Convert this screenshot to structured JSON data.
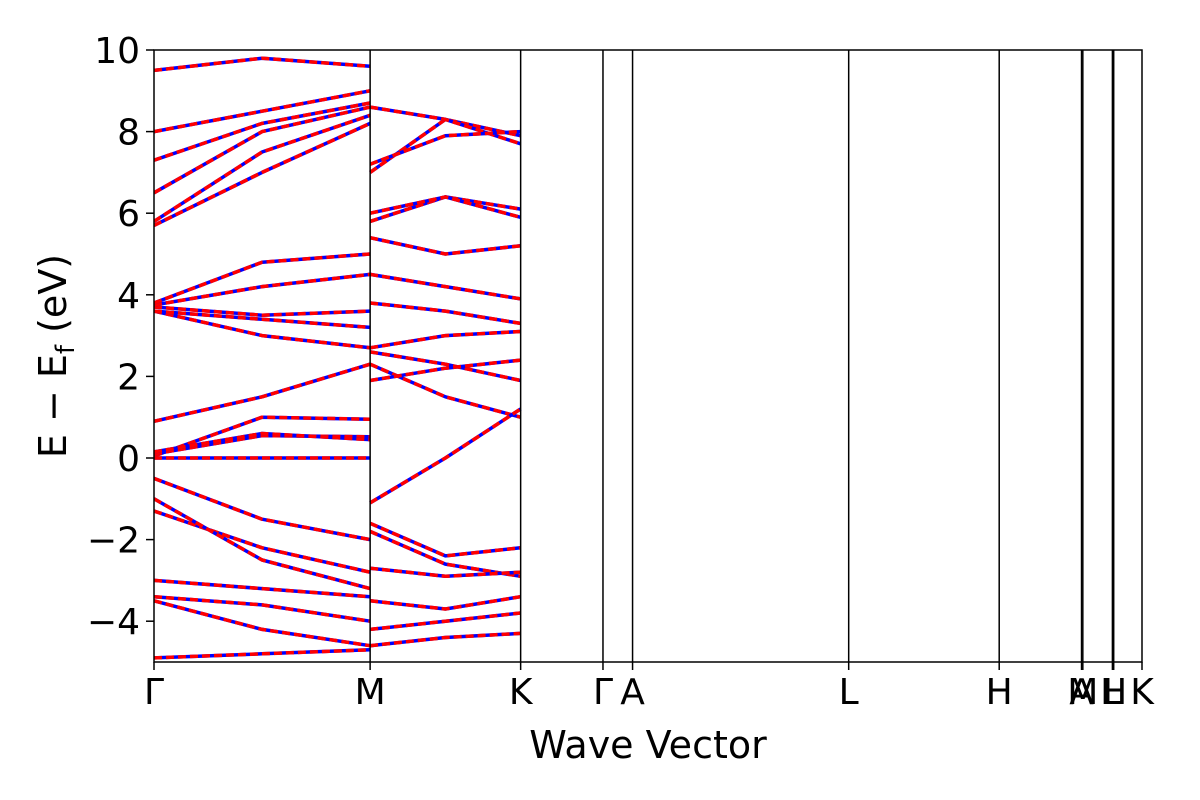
{
  "chart_data": {
    "type": "line",
    "title": "",
    "xlabel": "Wave Vector",
    "ylabel": "E − E_f (eV)",
    "ylabel_main": "E − E",
    "ylabel_sub": "f",
    "ylabel_unit": " (eV)",
    "ylim": [
      -5,
      10
    ],
    "yticks": [
      -4,
      -2,
      0,
      2,
      4,
      6,
      8,
      10
    ],
    "ytick_labels": [
      "−4",
      "−2",
      "0",
      "2",
      "4",
      "6",
      "8",
      "10"
    ],
    "xlim": [
      0,
      7.68
    ],
    "kpoints": [
      {
        "label": "Γ",
        "x": 0.0
      },
      {
        "label": "M",
        "x": 1.68
      },
      {
        "label": "K",
        "x": 2.85
      },
      {
        "label": "Γ",
        "x": 3.49
      },
      {
        "label": "A",
        "x": 3.72
      },
      {
        "label": "L",
        "x": 5.4
      },
      {
        "label": "H",
        "x": 6.57
      },
      {
        "label": "A",
        "x": 7.21
      },
      {
        "label": "M",
        "x": 7.22
      },
      {
        "label": "L",
        "x": 7.45
      },
      {
        "label": "H",
        "x": 7.46
      },
      {
        "label": "K",
        "x": 7.68
      }
    ],
    "series_style": {
      "under": "#0000ff",
      "over": "#ff0000",
      "over_dash": "dashed"
    },
    "segments": [
      [
        [
          0.0,
          0.0,
          0.0,
          0.0
        ],
        [
          0.0,
          0.05,
          1.0,
          0.95
        ],
        [
          0.0,
          0.1,
          0.55,
          0.52
        ],
        [
          0.0,
          0.15,
          0.6,
          0.45
        ],
        [
          0.0,
          0.9,
          1.5,
          2.3
        ],
        [
          0.0,
          3.6,
          3.0,
          2.7
        ],
        [
          0.0,
          3.6,
          3.4,
          3.2
        ],
        [
          0.0,
          3.7,
          3.5,
          3.6
        ],
        [
          0.0,
          3.75,
          4.2,
          4.5
        ],
        [
          0.0,
          3.8,
          4.8,
          5.0
        ],
        [
          0.0,
          5.7,
          7.0,
          8.2
        ],
        [
          0.0,
          5.8,
          7.5,
          8.4
        ],
        [
          0.0,
          6.5,
          8.0,
          8.6
        ],
        [
          0.0,
          7.3,
          8.2,
          8.7
        ],
        [
          0.0,
          8.0,
          8.5,
          9.0
        ],
        [
          0.0,
          9.5,
          9.8,
          9.6
        ],
        [
          0.0,
          -0.5,
          -1.5,
          -2.0
        ],
        [
          0.0,
          -1.3,
          -2.2,
          -2.8
        ],
        [
          0.0,
          -1.0,
          -2.5,
          -3.2
        ],
        [
          0.0,
          -3.0,
          -3.2,
          -3.4
        ],
        [
          0.0,
          -3.4,
          -3.6,
          -4.0
        ],
        [
          0.0,
          -3.5,
          -4.2,
          -4.6
        ],
        [
          0.0,
          -4.9,
          -4.8,
          -4.7
        ]
      ],
      [
        [
          0.0,
          2.3,
          1.5,
          1.0
        ],
        [
          0.0,
          2.6,
          2.3,
          1.9
        ],
        [
          0.0,
          1.9,
          2.2,
          2.4
        ],
        [
          0.0,
          -1.1,
          0.0,
          1.2
        ],
        [
          0.0,
          2.7,
          3.0,
          3.1
        ],
        [
          0.0,
          3.8,
          3.6,
          3.3
        ],
        [
          0.0,
          4.5,
          4.2,
          3.9
        ],
        [
          0.0,
          5.4,
          5.0,
          5.2
        ],
        [
          0.0,
          5.8,
          6.4,
          6.1
        ],
        [
          0.0,
          7.0,
          8.3,
          7.9
        ],
        [
          0.0,
          8.6,
          8.3,
          7.7
        ],
        [
          0.0,
          7.2,
          7.9,
          8.0
        ],
        [
          0.0,
          6.0,
          6.4,
          5.9
        ],
        [
          0.0,
          -1.6,
          -2.4,
          -2.2
        ],
        [
          0.0,
          -1.8,
          -2.6,
          -2.9
        ],
        [
          0.0,
          -2.7,
          -2.9,
          -2.8
        ],
        [
          0.0,
          -3.5,
          -3.7,
          -3.4
        ],
        [
          0.0,
          -4.2,
          -4.0,
          -3.8
        ],
        [
          0.0,
          -4.6,
          -4.4,
          -4.3
        ]
      ]
    ]
  }
}
